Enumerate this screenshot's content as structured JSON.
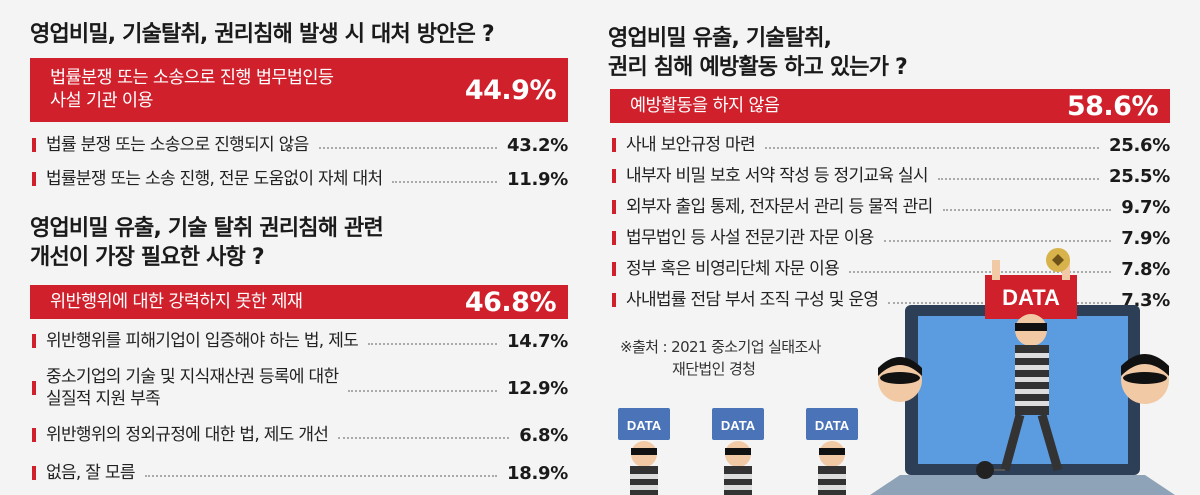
{
  "chart_data": [
    {
      "type": "bar",
      "title": "영업비밀, 기술탈취, 권리침해 발생 시 대처 방안은 ?",
      "unit": "%",
      "categories": [
        "법률분쟁 또는 소송으로 진행 법무법인등\n사설 기관 이용",
        "법률 분쟁 또는 소송으로 진행되지 않음",
        "법률분쟁 또는 소송 진행, 전문 도움없이 자체 대처"
      ],
      "values": [
        44.9,
        43.2,
        11.9
      ],
      "value_labels": [
        "44.9%",
        "43.2%",
        "11.9%"
      ]
    },
    {
      "type": "bar",
      "title": "영업비밀 유출, 기술 탈취 권리침해 관련\n개선이 가장 필요한 사항 ?",
      "unit": "%",
      "categories": [
        "위반행위에 대한 강력하지 못한 제재",
        "위반행위를 피해기업이 입증해야 하는 법, 제도",
        "중소기업의 기술 및 지식재산권 등록에 대한\n실질적 지원 부족",
        "위반행위의 정외규정에 대한 법, 제도 개선",
        "없음, 잘 모름"
      ],
      "values": [
        46.8,
        14.7,
        12.9,
        6.8,
        18.9
      ],
      "value_labels": [
        "46.8%",
        "14.7%",
        "12.9%",
        "6.8%",
        "18.9%"
      ]
    },
    {
      "type": "bar",
      "title": "영업비밀 유출, 기술탈취,\n권리 침해 예방활동 하고 있는가 ?",
      "unit": "%",
      "categories": [
        "예방활동을 하지 않음",
        "사내 보안규정 마련",
        "내부자 비밀 보호 서약 작성 등 정기교육 실시",
        "외부자 출입 통제, 전자문서 관리 등 물적 관리",
        "법무법인 등 사설 전문기관 자문 이용",
        "정부 혹은 비영리단체 자문 이용",
        "사내법률 전담 부서 조직 구성 및 운영"
      ],
      "values": [
        58.6,
        25.6,
        25.5,
        9.7,
        7.9,
        7.8,
        7.3
      ],
      "value_labels": [
        "58.6%",
        "25.6%",
        "25.5%",
        "9.7%",
        "7.9%",
        "7.8%",
        "7.3%"
      ]
    }
  ],
  "source": {
    "line1": "※출처 : 2021 중소기업 실태조사",
    "line2": "재단법인 경청"
  },
  "illustration": {
    "sign_text": "DATA",
    "colors": {
      "accent_red": "#d0202c",
      "sign_blue": "#4a73b8",
      "monitor_blue": "#4f8fd6"
    }
  }
}
